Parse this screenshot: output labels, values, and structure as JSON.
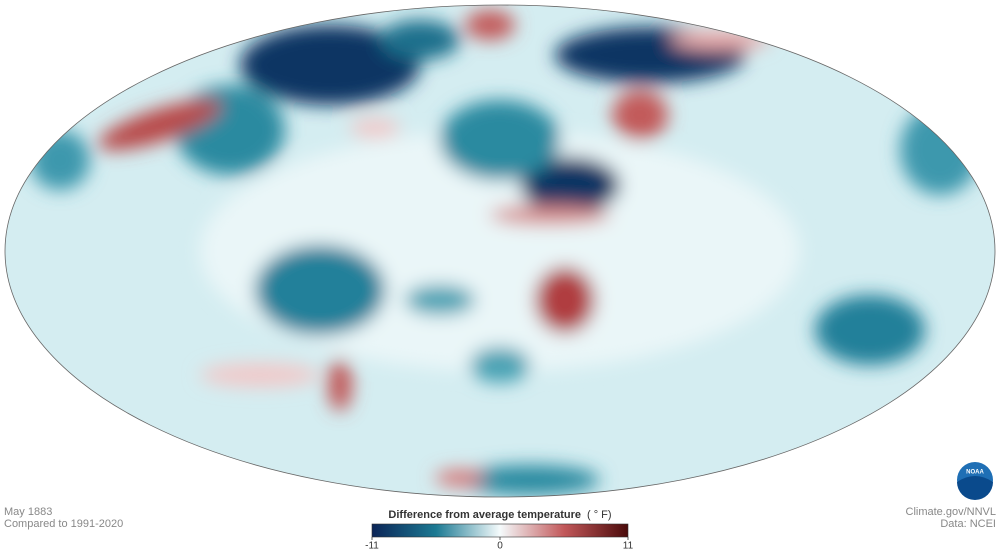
{
  "map": {
    "date": "May 1883",
    "baseline": "Compared to 1991-2020",
    "logo": "NOAA"
  },
  "legend": {
    "title": "Difference from average temperature",
    "unit": "( ° F)",
    "range": [
      -11,
      11
    ],
    "ticks": [
      -11,
      0,
      11
    ]
  },
  "credits": {
    "source": "Climate.gov/NNVL",
    "data": "Data: NCEI"
  }
}
